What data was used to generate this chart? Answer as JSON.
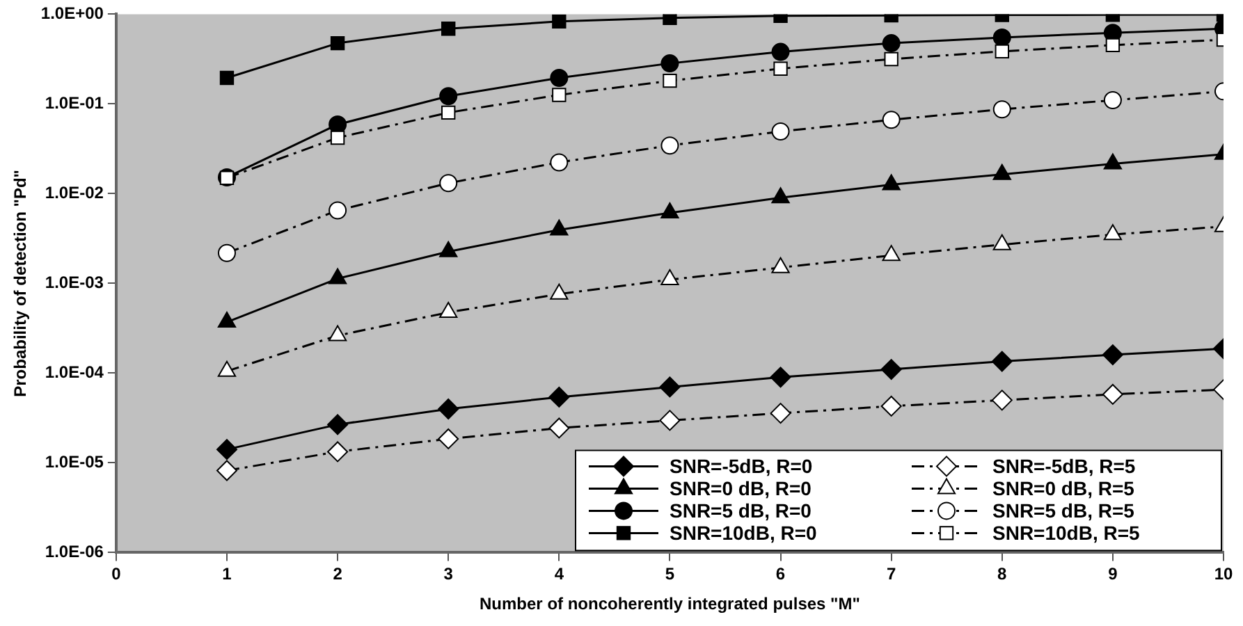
{
  "chart_data": {
    "type": "line",
    "xlabel": "Number of noncoherently integrated pulses \"M\"",
    "ylabel": "Probability of detection \"Pd\"",
    "x": [
      1,
      2,
      3,
      4,
      5,
      6,
      7,
      8,
      9,
      10
    ],
    "xlim": [
      0,
      10
    ],
    "xticks": [
      0,
      1,
      2,
      3,
      4,
      5,
      6,
      7,
      8,
      9,
      10
    ],
    "ylim": [
      1e-06,
      1
    ],
    "log": true,
    "yticks": [
      {
        "value": 1,
        "label": "1.0E+00"
      },
      {
        "value": 0.1,
        "label": "1.0E-01"
      },
      {
        "value": 0.01,
        "label": "1.0E-02"
      },
      {
        "value": 0.001,
        "label": "1.0E-03"
      },
      {
        "value": 0.0001,
        "label": "1.0E-04"
      },
      {
        "value": 1e-05,
        "label": "1.0E-05"
      },
      {
        "value": 1e-06,
        "label": "1.0E-06"
      }
    ],
    "grid": false,
    "legend": "bottom right",
    "series": [
      {
        "name": "SNR=-5dB, R=0",
        "color": "#000000",
        "marker": "diamond",
        "line_style": "solid",
        "values": [
          1.41e-05,
          2.67e-05,
          3.98e-05,
          5.4e-05,
          7e-05,
          9e-05,
          0.00011,
          0.000135,
          0.00016,
          0.000187
        ]
      },
      {
        "name": "SNR=0 dB, R=0",
        "color": "#000000",
        "marker": "triangle",
        "line_style": "solid",
        "values": [
          0.00037,
          0.00113,
          0.00226,
          0.00395,
          0.0061,
          0.009,
          0.0126,
          0.0164,
          0.0215,
          0.0275
        ]
      },
      {
        "name": "SNR=5 dB, R=0",
        "color": "#000000",
        "marker": "circle",
        "line_style": "solid",
        "values": [
          0.0152,
          0.059,
          0.122,
          0.195,
          0.283,
          0.38,
          0.475,
          0.55,
          0.62,
          0.69
        ]
      },
      {
        "name": "SNR=10dB, R=0",
        "color": "#000000",
        "marker": "square",
        "line_style": "solid",
        "values": [
          0.195,
          0.475,
          0.69,
          0.83,
          0.91,
          0.96,
          0.97,
          0.98,
          0.985,
          0.99
        ]
      },
      {
        "name": "SNR=-5dB, R=5",
        "color": "#ffffff",
        "marker": "diamond",
        "line_style": "dashed",
        "values": [
          8.2e-06,
          1.33e-05,
          1.85e-05,
          2.44e-05,
          2.97e-05,
          3.57e-05,
          4.28e-05,
          4.99e-05,
          5.8e-05,
          6.55e-05
        ]
      },
      {
        "name": "SNR=0 dB, R=5",
        "color": "#ffffff",
        "marker": "triangle",
        "line_style": "dashed",
        "values": [
          0.000105,
          0.000262,
          0.000475,
          0.00076,
          0.0011,
          0.0015,
          0.00205,
          0.0027,
          0.0035,
          0.0043
        ]
      },
      {
        "name": "SNR=5 dB, R=5",
        "color": "#ffffff",
        "marker": "circle",
        "line_style": "dashed",
        "values": [
          0.00218,
          0.0065,
          0.0131,
          0.0223,
          0.0344,
          0.0493,
          0.0665,
          0.087,
          0.11,
          0.138
        ]
      },
      {
        "name": "SNR=10dB, R=5",
        "color": "#ffffff",
        "marker": "square",
        "line_style": "dashed",
        "values": [
          0.015,
          0.042,
          0.08,
          0.126,
          0.181,
          0.247,
          0.316,
          0.385,
          0.452,
          0.519
        ]
      }
    ]
  }
}
